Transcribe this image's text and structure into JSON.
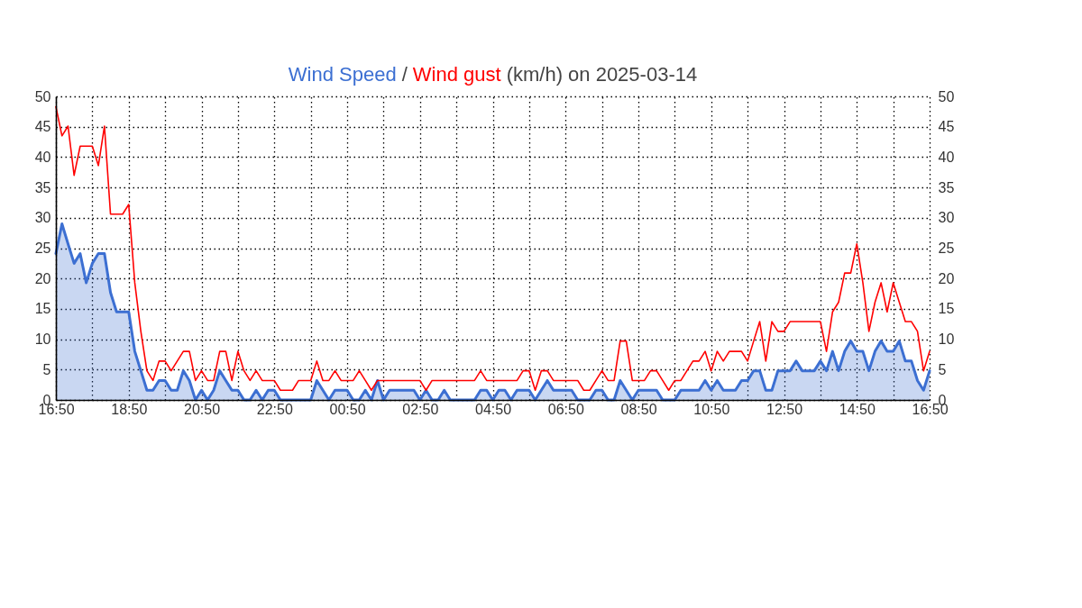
{
  "chart_data": {
    "type": "line",
    "title": "(km/h) on 2025-03-14",
    "annotations": [
      "/"
    ],
    "x": [
      "2025-03-13T16:50",
      "2025-03-13T17:00",
      "2025-03-13T17:10",
      "2025-03-13T17:20",
      "2025-03-13T17:30",
      "2025-03-13T17:40",
      "2025-03-13T17:50",
      "2025-03-13T18:00",
      "2025-03-13T18:10",
      "2025-03-13T18:20",
      "2025-03-13T18:30",
      "2025-03-13T18:40",
      "2025-03-13T18:50",
      "2025-03-13T19:00",
      "2025-03-13T19:10",
      "2025-03-13T19:20",
      "2025-03-13T19:30",
      "2025-03-13T19:40",
      "2025-03-13T19:50",
      "2025-03-13T20:00",
      "2025-03-13T20:10",
      "2025-03-13T20:20",
      "2025-03-13T20:30",
      "2025-03-13T20:40",
      "2025-03-13T20:50",
      "2025-03-13T21:00",
      "2025-03-13T21:10",
      "2025-03-13T21:20",
      "2025-03-13T21:30",
      "2025-03-13T21:40",
      "2025-03-13T21:50",
      "2025-03-13T22:00",
      "2025-03-13T22:10",
      "2025-03-13T22:20",
      "2025-03-13T22:30",
      "2025-03-13T22:40",
      "2025-03-13T22:50",
      "2025-03-13T23:00",
      "2025-03-13T23:10",
      "2025-03-13T23:20",
      "2025-03-13T23:30",
      "2025-03-13T23:40",
      "2025-03-13T23:50",
      "2025-03-14T00:00",
      "2025-03-14T00:10",
      "2025-03-14T00:20",
      "2025-03-14T00:30",
      "2025-03-14T00:40",
      "2025-03-14T00:50",
      "2025-03-14T01:00",
      "2025-03-14T01:10",
      "2025-03-14T01:20",
      "2025-03-14T01:30",
      "2025-03-14T01:40",
      "2025-03-14T01:50",
      "2025-03-14T02:00",
      "2025-03-14T02:10",
      "2025-03-14T02:20",
      "2025-03-14T02:30",
      "2025-03-14T02:40",
      "2025-03-14T02:50",
      "2025-03-14T03:00",
      "2025-03-14T03:10",
      "2025-03-14T03:20",
      "2025-03-14T03:30",
      "2025-03-14T03:40",
      "2025-03-14T03:50",
      "2025-03-14T04:00",
      "2025-03-14T04:10",
      "2025-03-14T04:20",
      "2025-03-14T04:30",
      "2025-03-14T04:40",
      "2025-03-14T04:50",
      "2025-03-14T05:00",
      "2025-03-14T05:10",
      "2025-03-14T05:20",
      "2025-03-14T05:30",
      "2025-03-14T05:40",
      "2025-03-14T05:50",
      "2025-03-14T06:00",
      "2025-03-14T06:10",
      "2025-03-14T06:20",
      "2025-03-14T06:30",
      "2025-03-14T06:40",
      "2025-03-14T06:50",
      "2025-03-14T07:00",
      "2025-03-14T07:10",
      "2025-03-14T07:20",
      "2025-03-14T07:30",
      "2025-03-14T07:40",
      "2025-03-14T07:50",
      "2025-03-14T08:00",
      "2025-03-14T08:10",
      "2025-03-14T08:20",
      "2025-03-14T08:30",
      "2025-03-14T08:40",
      "2025-03-14T08:50",
      "2025-03-14T09:00",
      "2025-03-14T09:10",
      "2025-03-14T09:20",
      "2025-03-14T09:30",
      "2025-03-14T09:40",
      "2025-03-14T09:50",
      "2025-03-14T10:00",
      "2025-03-14T10:10",
      "2025-03-14T10:20",
      "2025-03-14T10:30",
      "2025-03-14T10:40",
      "2025-03-14T10:50",
      "2025-03-14T11:00",
      "2025-03-14T11:10",
      "2025-03-14T11:20",
      "2025-03-14T11:30",
      "2025-03-14T11:40",
      "2025-03-14T11:50",
      "2025-03-14T12:00",
      "2025-03-14T12:10",
      "2025-03-14T12:20",
      "2025-03-14T12:30",
      "2025-03-14T12:40",
      "2025-03-14T12:50",
      "2025-03-14T13:00",
      "2025-03-14T13:10",
      "2025-03-14T13:20",
      "2025-03-14T13:30",
      "2025-03-14T13:40",
      "2025-03-14T13:50",
      "2025-03-14T14:00",
      "2025-03-14T14:10",
      "2025-03-14T14:20",
      "2025-03-14T14:30",
      "2025-03-14T14:40",
      "2025-03-14T14:50",
      "2025-03-14T15:00",
      "2025-03-14T15:10",
      "2025-03-14T15:20",
      "2025-03-14T15:30",
      "2025-03-14T15:40",
      "2025-03-14T15:50",
      "2025-03-14T16:00",
      "2025-03-14T16:10",
      "2025-03-14T16:20",
      "2025-03-14T16:30",
      "2025-03-14T16:40",
      "2025-03-14T16:50"
    ],
    "series": [
      {
        "name": "Wind Speed",
        "type": "area",
        "color": "#3c6fd2",
        "values": [
          24.1,
          29.0,
          25.7,
          22.5,
          24.1,
          19.3,
          22.5,
          24.1,
          24.1,
          17.7,
          14.5,
          14.5,
          14.5,
          8.0,
          4.8,
          1.6,
          1.6,
          3.2,
          3.2,
          1.6,
          1.6,
          4.8,
          3.2,
          0,
          1.6,
          0,
          1.6,
          4.8,
          3.2,
          1.6,
          1.6,
          0,
          0,
          1.6,
          0,
          1.6,
          1.6,
          0,
          0,
          0,
          0,
          0,
          0,
          3.2,
          1.6,
          0,
          1.6,
          1.6,
          1.6,
          0,
          0,
          1.6,
          0,
          3.2,
          0,
          1.6,
          1.6,
          1.6,
          1.6,
          1.6,
          0,
          1.6,
          0,
          0,
          1.6,
          0,
          0,
          0,
          0,
          0,
          1.6,
          1.6,
          0,
          1.6,
          1.6,
          0,
          1.6,
          1.6,
          1.6,
          0,
          1.6,
          3.2,
          1.6,
          1.6,
          1.6,
          1.6,
          0,
          0,
          0,
          1.6,
          1.6,
          0,
          0,
          3.2,
          1.6,
          0,
          1.6,
          1.6,
          1.6,
          1.6,
          0,
          0,
          0,
          1.6,
          1.6,
          1.6,
          1.6,
          3.2,
          1.6,
          3.2,
          1.6,
          1.6,
          1.6,
          3.2,
          3.2,
          4.8,
          4.8,
          1.6,
          1.6,
          4.8,
          4.8,
          4.8,
          6.4,
          4.8,
          4.8,
          4.8,
          6.4,
          4.8,
          8.0,
          4.8,
          8.0,
          9.7,
          8.0,
          8.0,
          4.8,
          8.0,
          9.7,
          8.0,
          8.0,
          9.7,
          6.4,
          6.4,
          3.2,
          1.6,
          4.8
        ]
      },
      {
        "name": "Wind gust",
        "color": "#ff0000",
        "values": [
          48.3,
          43.5,
          45.1,
          37.0,
          41.8,
          41.8,
          41.8,
          38.6,
          45.1,
          30.6,
          30.6,
          30.6,
          32.2,
          19.3,
          11.3,
          4.8,
          3.2,
          6.4,
          6.4,
          4.8,
          6.4,
          8.0,
          8.0,
          3.2,
          4.8,
          3.2,
          3.2,
          8.0,
          8.0,
          3.2,
          8.0,
          4.8,
          3.2,
          4.8,
          3.2,
          3.2,
          3.2,
          1.6,
          1.6,
          1.6,
          3.2,
          3.2,
          3.2,
          6.4,
          3.2,
          3.2,
          4.8,
          3.2,
          3.2,
          3.2,
          4.8,
          3.2,
          1.6,
          3.2,
          3.2,
          3.2,
          3.2,
          3.2,
          3.2,
          3.2,
          3.2,
          1.6,
          3.2,
          3.2,
          3.2,
          3.2,
          3.2,
          3.2,
          3.2,
          3.2,
          4.8,
          3.2,
          3.2,
          3.2,
          3.2,
          3.2,
          3.2,
          4.8,
          4.8,
          1.6,
          4.8,
          4.8,
          3.2,
          3.2,
          3.2,
          3.2,
          3.2,
          1.6,
          1.6,
          3.2,
          4.8,
          3.2,
          3.2,
          9.7,
          9.7,
          3.2,
          3.2,
          3.2,
          4.8,
          4.8,
          3.2,
          1.6,
          3.2,
          3.2,
          4.8,
          6.4,
          6.4,
          8.0,
          4.8,
          8.0,
          6.4,
          8.0,
          8.0,
          8.0,
          6.4,
          9.7,
          12.9,
          6.4,
          12.9,
          11.3,
          11.3,
          12.9,
          12.9,
          12.9,
          12.9,
          12.9,
          12.9,
          8.0,
          14.5,
          16.1,
          20.9,
          20.9,
          25.7,
          19.3,
          11.3,
          16.1,
          19.3,
          14.5,
          19.3,
          16.1,
          12.9,
          12.9,
          11.3,
          4.8,
          8.0
        ]
      }
    ],
    "xlim": [
      "2025-03-13T16:50",
      "2025-03-14T16:50"
    ],
    "xticks": [
      {
        "value": "2025-03-13T16:50",
        "label": "16:50"
      },
      {
        "value": "2025-03-13T17:50",
        "label": null
      },
      {
        "value": "2025-03-13T18:50",
        "label": "18:50"
      },
      {
        "value": "2025-03-13T19:50",
        "label": null
      },
      {
        "value": "2025-03-13T20:50",
        "label": "20:50"
      },
      {
        "value": "2025-03-13T21:50",
        "label": null
      },
      {
        "value": "2025-03-13T22:50",
        "label": "22:50"
      },
      {
        "value": "2025-03-13T23:50",
        "label": null
      },
      {
        "value": "2025-03-14T00:50",
        "label": "00:50"
      },
      {
        "value": "2025-03-14T01:50",
        "label": null
      },
      {
        "value": "2025-03-14T02:50",
        "label": "02:50"
      },
      {
        "value": "2025-03-14T03:50",
        "label": null
      },
      {
        "value": "2025-03-14T04:50",
        "label": "04:50"
      },
      {
        "value": "2025-03-14T05:50",
        "label": null
      },
      {
        "value": "2025-03-14T06:50",
        "label": "06:50"
      },
      {
        "value": "2025-03-14T07:50",
        "label": null
      },
      {
        "value": "2025-03-14T08:50",
        "label": "08:50"
      },
      {
        "value": "2025-03-14T09:50",
        "label": null
      },
      {
        "value": "2025-03-14T10:50",
        "label": "10:50"
      },
      {
        "value": "2025-03-14T11:50",
        "label": null
      },
      {
        "value": "2025-03-14T12:50",
        "label": "12:50"
      },
      {
        "value": "2025-03-14T13:50",
        "label": null
      },
      {
        "value": "2025-03-14T14:50",
        "label": "14:50"
      },
      {
        "value": "2025-03-14T15:50",
        "label": null
      },
      {
        "value": "2025-03-14T16:50",
        "label": "16:50"
      }
    ],
    "ylim": [
      0,
      50
    ],
    "yticks": [
      0,
      5,
      10,
      15,
      20,
      25,
      30,
      35,
      40,
      45,
      50
    ],
    "y2lim": [
      0,
      50
    ],
    "y2ticks": [
      0,
      5,
      10,
      15,
      20,
      25,
      30,
      35,
      40,
      45,
      50
    ],
    "grid": true
  }
}
